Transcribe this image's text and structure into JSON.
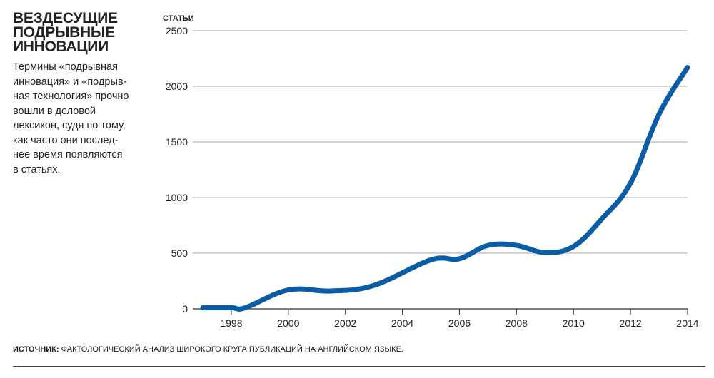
{
  "title_lines": [
    "ВЕЗДЕСУЩИЕ",
    "ПОДРЫВНЫЕ",
    "ИННОВАЦИИ"
  ],
  "description_lines": [
    "Термины «подрывная",
    "инновация» и «подрыв-",
    "ная технология» прочно",
    "вошли в деловой",
    "лексикон, судя по тому,",
    "как часто они послед-",
    "нее время появляются",
    "в статьях."
  ],
  "source": {
    "label": "ИСТОЧНИК:",
    "text": "ФАКТОЛОГИЧЕСКИЙ АНАЛИЗ ШИРОКОГО КРУГА ПУБЛИКАЦИЙ НА АНГЛИЙСКОМ ЯЗЫКЕ."
  },
  "chart_data": {
    "type": "line",
    "title": "ВЕЗДЕСУЩИЕ ПОДРЫВНЫЕ ИННОВАЦИИ",
    "ylabel": "СТАТЬИ",
    "xlabel": "",
    "xlim": [
      1997,
      2014
    ],
    "ylim": [
      0,
      2500
    ],
    "x_ticks": [
      1998,
      2000,
      2002,
      2004,
      2006,
      2008,
      2010,
      2012,
      2014
    ],
    "y_ticks": [
      0,
      500,
      1000,
      1500,
      2000,
      2500
    ],
    "grid": true,
    "line_color": "#0a5ca5",
    "series": [
      {
        "x": [
          1997,
          1998,
          1998.5,
          2000,
          2001.5,
          2003,
          2005,
          2006,
          2007,
          2008,
          2009,
          2010,
          2011,
          2012,
          2013,
          2014
        ],
        "values": [
          10,
          10,
          10,
          170,
          160,
          210,
          440,
          450,
          570,
          570,
          505,
          560,
          810,
          1130,
          1750,
          2170
        ]
      }
    ]
  }
}
